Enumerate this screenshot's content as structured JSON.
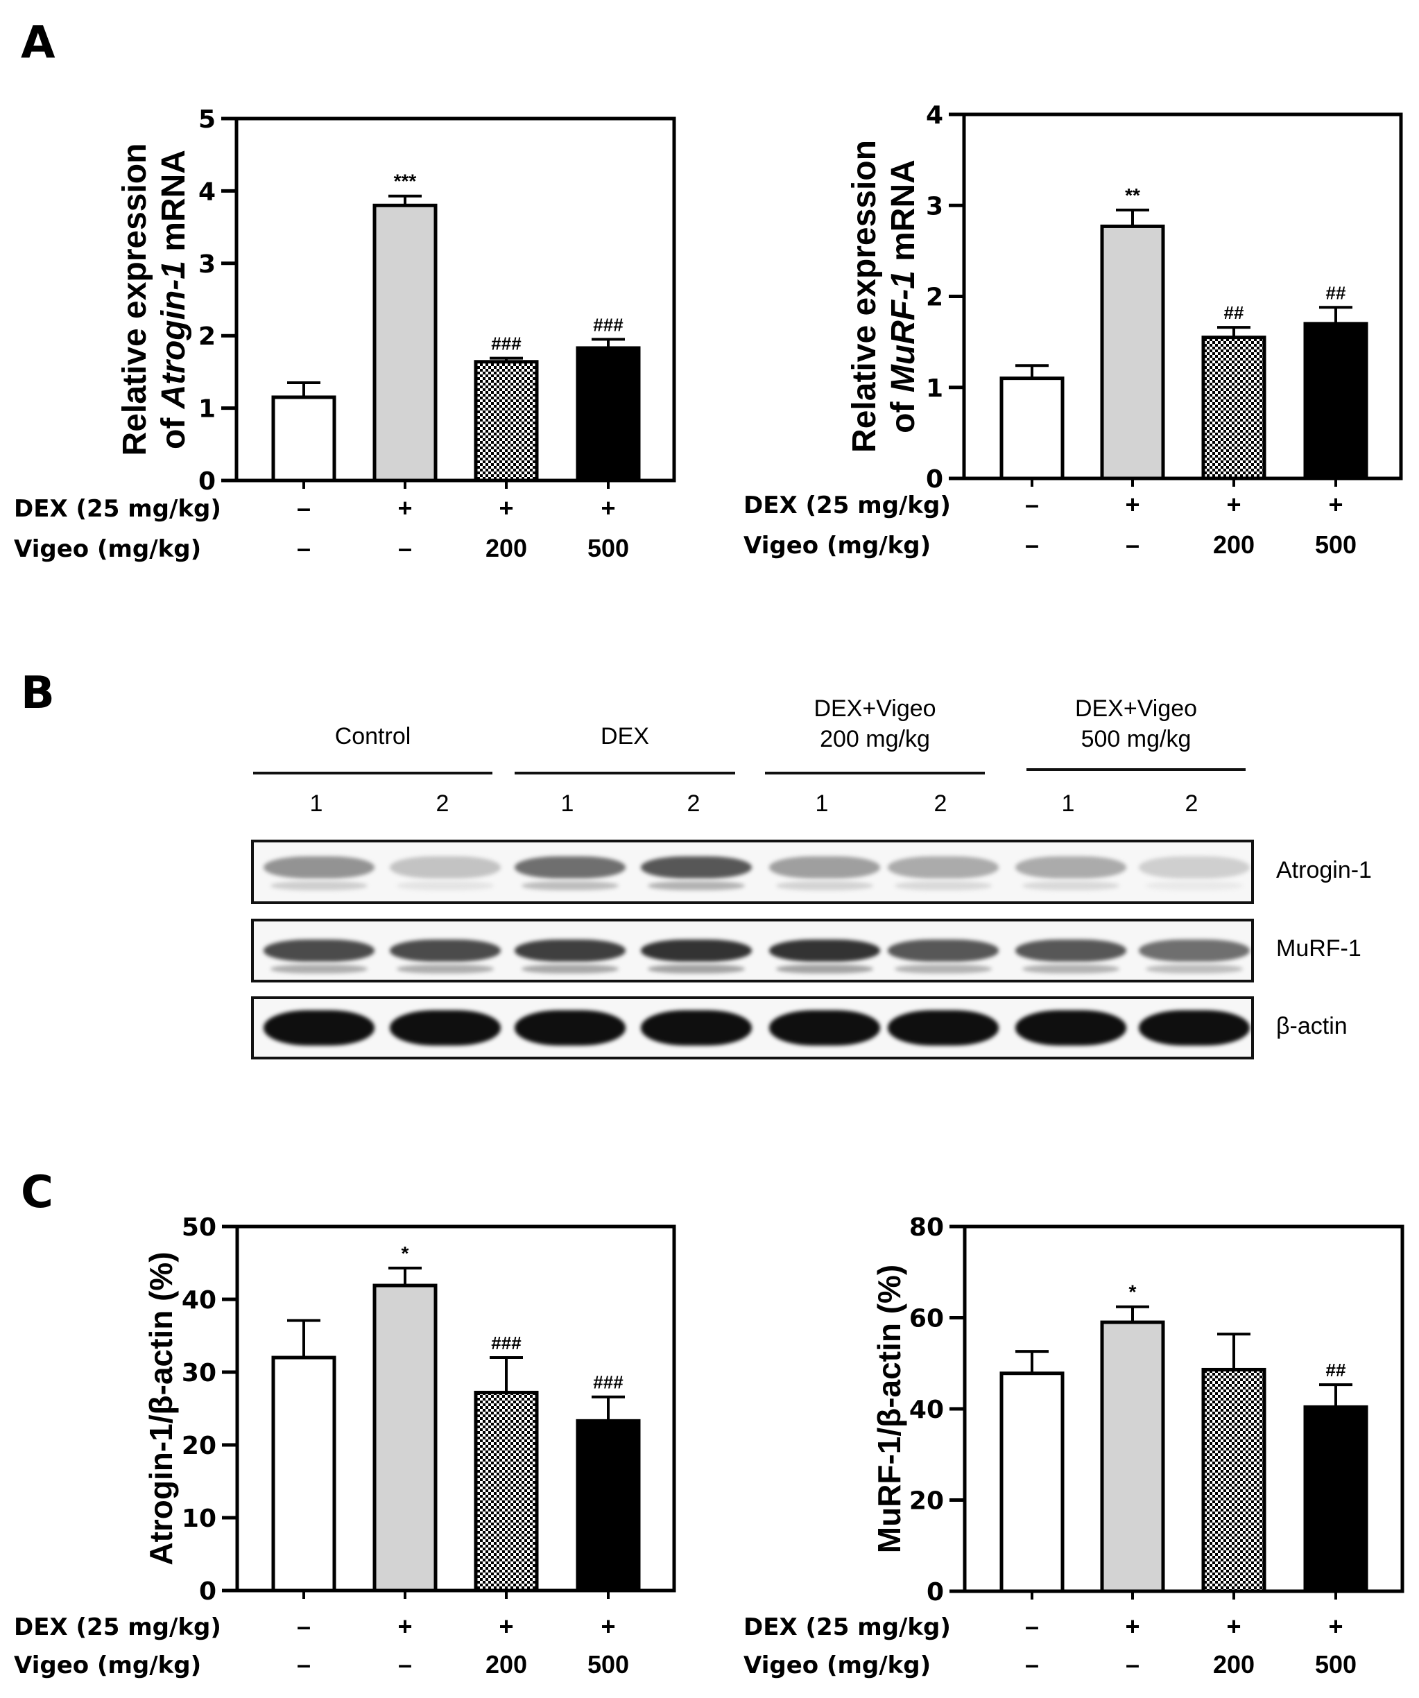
{
  "panels": {
    "A": "A",
    "B": "B",
    "C": "C"
  },
  "treatment_rows": {
    "dex_label": "DEX (25 mg/kg)",
    "vigeo_label": "Vigeo (mg/kg)",
    "dex_values": [
      "–",
      "+",
      "+",
      "+"
    ],
    "vigeo_values": [
      "–",
      "–",
      "200",
      "500"
    ]
  },
  "colors": {
    "control": "#ffffff",
    "dex": "#d3d3d3",
    "vigeo200": "checkerboard",
    "vigeo500": "#000000",
    "axis": "#000000"
  },
  "chart_data": [
    {
      "id": "A-left",
      "type": "bar",
      "title": "",
      "ylabel": "Relative expression of Atrogin-1 mRNA",
      "ylabel_line1": "Relative expression",
      "ylabel_line2_prefix": "of ",
      "ylabel_line2_italic": "Atrogin-1",
      "ylabel_line2_suffix": " mRNA",
      "xlabel": "",
      "categories": [
        "Control",
        "DEX",
        "DEX+Vigeo 200",
        "DEX+Vigeo 500"
      ],
      "values": [
        1.15,
        3.8,
        1.64,
        1.83
      ],
      "errors": [
        0.2,
        0.13,
        0.05,
        0.12
      ],
      "annotations": [
        "",
        "***",
        "###",
        "###"
      ],
      "ylim": [
        0,
        5
      ],
      "yticks": [
        0,
        1,
        2,
        3,
        4,
        5
      ],
      "grid": false
    },
    {
      "id": "A-right",
      "type": "bar",
      "title": "",
      "ylabel": "Relative expression of MuRF-1 mRNA",
      "ylabel_line1": "Relative expression",
      "ylabel_line2_prefix": "of ",
      "ylabel_line2_italic": "MuRF-1",
      "ylabel_line2_suffix": " mRNA",
      "xlabel": "",
      "categories": [
        "Control",
        "DEX",
        "DEX+Vigeo 200",
        "DEX+Vigeo 500"
      ],
      "values": [
        1.1,
        2.77,
        1.55,
        1.7
      ],
      "errors": [
        0.14,
        0.18,
        0.11,
        0.18
      ],
      "annotations": [
        "",
        "**",
        "##",
        "##"
      ],
      "ylim": [
        0,
        4
      ],
      "yticks": [
        0,
        1,
        2,
        3,
        4
      ],
      "grid": false
    },
    {
      "id": "C-left",
      "type": "bar",
      "title": "",
      "ylabel": "Atrogin-1/β-actin (%)",
      "xlabel": "",
      "categories": [
        "Control",
        "DEX",
        "DEX+Vigeo 200",
        "DEX+Vigeo 500"
      ],
      "values": [
        32.0,
        41.9,
        27.2,
        23.3
      ],
      "errors": [
        5.1,
        2.4,
        4.8,
        3.3
      ],
      "annotations": [
        "",
        "*",
        "###",
        "###"
      ],
      "ylim": [
        0,
        50
      ],
      "yticks": [
        0,
        10,
        20,
        30,
        40,
        50
      ],
      "grid": false
    },
    {
      "id": "C-right",
      "type": "bar",
      "title": "",
      "ylabel": "MuRF-1/β-actin (%)",
      "xlabel": "",
      "categories": [
        "Control",
        "DEX",
        "DEX+Vigeo 200",
        "DEX+Vigeo 500"
      ],
      "values": [
        47.8,
        59.0,
        48.6,
        40.4
      ],
      "errors": [
        4.8,
        3.4,
        7.8,
        4.9
      ],
      "annotations": [
        "",
        "*",
        "",
        "##"
      ],
      "ylim": [
        0,
        80
      ],
      "yticks": [
        0,
        20,
        40,
        60,
        80
      ],
      "grid": false
    }
  ],
  "western_blot": {
    "groups": [
      {
        "label": "Control"
      },
      {
        "label": "DEX"
      },
      {
        "label": "DEX+Vigeo\n200 mg/kg"
      },
      {
        "label": "DEX+Vigeo\n500 mg/kg"
      }
    ],
    "lanes": [
      "1",
      "2",
      "1",
      "2",
      "1",
      "2",
      "1",
      "2"
    ],
    "blots": [
      {
        "label": "Atrogin-1",
        "intensity": [
          0.45,
          0.25,
          0.6,
          0.7,
          0.4,
          0.35,
          0.35,
          0.2
        ]
      },
      {
        "label": "MuRF-1",
        "intensity": [
          0.75,
          0.75,
          0.8,
          0.85,
          0.85,
          0.7,
          0.7,
          0.6
        ]
      },
      {
        "label": "β-actin",
        "intensity": [
          1,
          1,
          1,
          1,
          1,
          1,
          1,
          1
        ]
      }
    ]
  }
}
